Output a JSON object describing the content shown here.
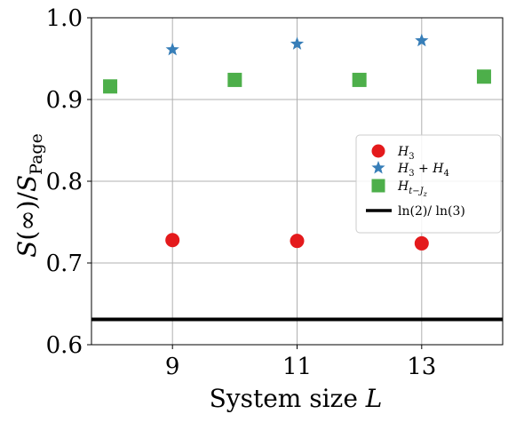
{
  "chart_data": {
    "type": "scatter",
    "title": "",
    "xlabel": "System size L",
    "ylabel": "S(∞)/S_Page",
    "xlim": [
      7.7,
      14.3
    ],
    "ylim": [
      0.6,
      1.0
    ],
    "xticks": [
      9,
      11,
      13
    ],
    "yticks": [
      0.6,
      0.7,
      0.8,
      0.9,
      1.0
    ],
    "xtick_labels": [
      "9",
      "11",
      "13"
    ],
    "ytick_labels": [
      "0.6",
      "0.7",
      "0.8",
      "0.9",
      "1.0"
    ],
    "grid": true,
    "legend_position": "center-right",
    "series": [
      {
        "name": "H_3",
        "marker": "circle",
        "color": "#e41a1c",
        "x": [
          9,
          11,
          13
        ],
        "y": [
          0.728,
          0.727,
          0.724
        ]
      },
      {
        "name": "H_3 + H_4",
        "marker": "star",
        "color": "#377eb8",
        "x": [
          9,
          11,
          13
        ],
        "y": [
          0.961,
          0.968,
          0.972
        ]
      },
      {
        "name": "H_{t-J_z}",
        "marker": "square",
        "color": "#4daf4a",
        "x": [
          8,
          10,
          12,
          14
        ],
        "y": [
          0.916,
          0.924,
          0.924,
          0.928
        ]
      }
    ],
    "reference_lines": [
      {
        "name": "ln(2)/ln(3)",
        "y": 0.631,
        "color": "#000000"
      }
    ]
  }
}
